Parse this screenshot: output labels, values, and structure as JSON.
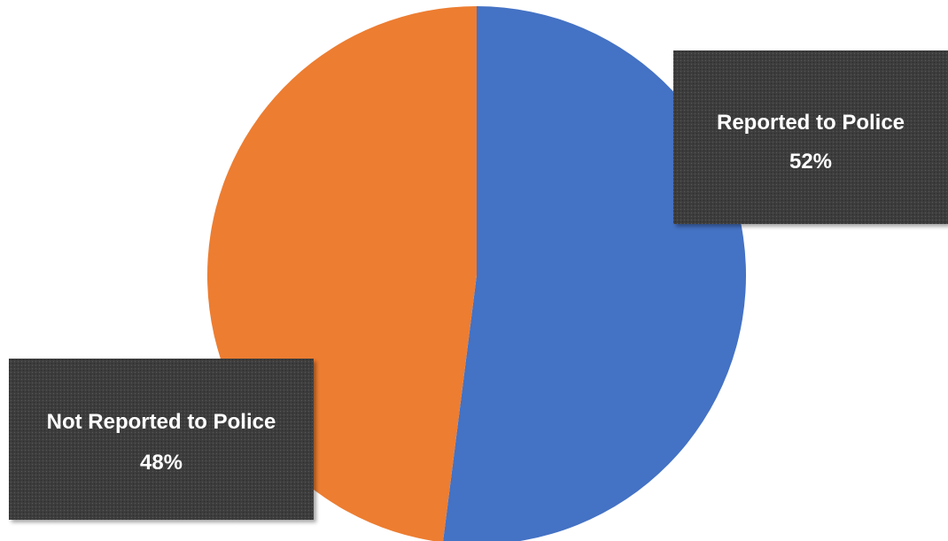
{
  "chart_data": {
    "type": "pie",
    "slices": [
      {
        "label": "Reported to Police",
        "value": 52,
        "value_label": "52%",
        "color": "#4472C4"
      },
      {
        "label": "Not Reported to Police",
        "value": 48,
        "value_label": "48%",
        "color": "#ED7D31"
      }
    ],
    "start_angle_deg": 0,
    "direction": "clockwise",
    "data_label_style": "dark callout boxes"
  }
}
